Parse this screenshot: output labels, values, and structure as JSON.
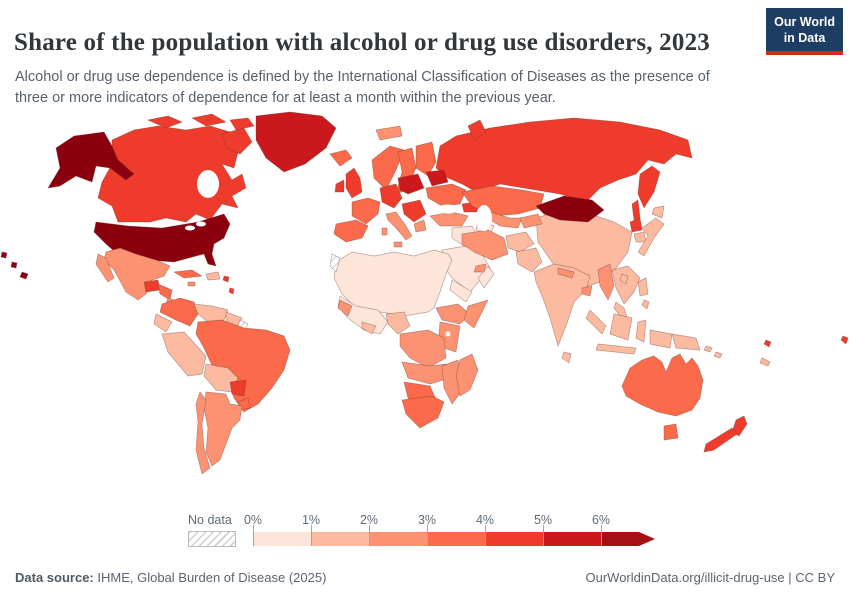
{
  "header": {
    "title": "Share of the population with alcohol or drug use disorders, 2023",
    "subtitle_line1": "Alcohol or drug use dependence is defined by the International Classification of Diseases as the presence of",
    "subtitle_line2": "three or more indicators of dependence for at least a month within the previous year.",
    "logo": {
      "line1": "Our World",
      "line2": "in Data",
      "bg_color": "#1d3d63",
      "accent_color": "#d42b21"
    }
  },
  "legend": {
    "no_data_label": "No data",
    "ticks": [
      "0%",
      "1%",
      "2%",
      "3%",
      "4%",
      "5%",
      "6%"
    ]
  },
  "footer": {
    "source_label": "Data source:",
    "source_text": " IHME, Global Burden of Disease (2025)",
    "right_text": "OurWorldinData.org/illicit-drug-use | CC BY"
  },
  "chart_data": {
    "type": "choropleth-map",
    "title": "Share of the population with alcohol or drug use disorders, 2023",
    "unit": "% of population",
    "year": "2023",
    "legend_position": "bottom",
    "bins": [
      {
        "range": "0-1%",
        "color": "#fee5d9"
      },
      {
        "range": "1-2%",
        "color": "#fcbba1"
      },
      {
        "range": "2-3%",
        "color": "#fc9272"
      },
      {
        "range": "3-4%",
        "color": "#fb6a4a"
      },
      {
        "range": "4-5%",
        "color": "#ef3b2c"
      },
      {
        "range": "5-6%",
        "color": "#cb181d"
      },
      {
        "range": "6%+",
        "color": "#a50f15"
      }
    ],
    "no_data_color": "hatch",
    "regions": [
      {
        "id": "russia",
        "name": "Russia",
        "bin": "4-5%",
        "color": "#ef3b2c"
      },
      {
        "id": "svalbard",
        "name": "Svalbard (Norway)",
        "bin": "2-3%",
        "color": "#fc9272"
      },
      {
        "id": "canada",
        "name": "Canada",
        "bin": "4-5%",
        "color": "#ef3b2c"
      },
      {
        "id": "greenland",
        "name": "Greenland",
        "bin": "5-6%",
        "color": "#cb181d"
      },
      {
        "id": "usa",
        "name": "United States",
        "bin": "6%+",
        "color": "#8b000f"
      },
      {
        "id": "mexico",
        "name": "Mexico",
        "bin": "2-3%",
        "color": "#fc9272"
      },
      {
        "id": "guatemala",
        "name": "Guatemala",
        "bin": "4-5%",
        "color": "#ef3b2c"
      },
      {
        "id": "honduras-nicaragua",
        "name": "Honduras & Nicaragua",
        "bin": "3-4%",
        "color": "#fb6a4a"
      },
      {
        "id": "costa-rica-panama",
        "name": "Costa Rica & Panama",
        "bin": "2-3%",
        "color": "#fc9272"
      },
      {
        "id": "cuba",
        "name": "Cuba",
        "bin": "3-4%",
        "color": "#fb6a4a"
      },
      {
        "id": "jamaica",
        "name": "Jamaica",
        "bin": "2-3%",
        "color": "#fc9272"
      },
      {
        "id": "hispaniola",
        "name": "Haiti & Dominican Republic",
        "bin": "1-2%",
        "color": "#fcbba1"
      },
      {
        "id": "lesser-antilles",
        "name": "Lesser Antilles",
        "bin": "4-5%",
        "color": "#ef3b2c"
      },
      {
        "id": "colombia",
        "name": "Colombia",
        "bin": "3-4%",
        "color": "#fb6a4a"
      },
      {
        "id": "venezuela",
        "name": "Venezuela",
        "bin": "1-2%",
        "color": "#fcbba1"
      },
      {
        "id": "guyanas",
        "name": "Guyana & Suriname",
        "bin": "1-2%",
        "color": "#fcbba1"
      },
      {
        "id": "french-guiana",
        "name": "French Guiana",
        "bin": "No data",
        "color": "hatch"
      },
      {
        "id": "ecuador",
        "name": "Ecuador",
        "bin": "1-2%",
        "color": "#fcbba1"
      },
      {
        "id": "brazil",
        "name": "Brazil",
        "bin": "3-4%",
        "color": "#fb6a4a"
      },
      {
        "id": "peru",
        "name": "Peru",
        "bin": "1-2%",
        "color": "#fcbba1"
      },
      {
        "id": "bolivia",
        "name": "Bolivia",
        "bin": "1-2%",
        "color": "#fcbba1"
      },
      {
        "id": "paraguay",
        "name": "Paraguay",
        "bin": "4-5%",
        "color": "#ef3b2c"
      },
      {
        "id": "uruguay",
        "name": "Uruguay",
        "bin": "3-4%",
        "color": "#fb6a4a"
      },
      {
        "id": "argentina",
        "name": "Argentina",
        "bin": "2-3%",
        "color": "#fc9272"
      },
      {
        "id": "chile",
        "name": "Chile",
        "bin": "2-3%",
        "color": "#fc9272"
      },
      {
        "id": "iceland",
        "name": "Iceland",
        "bin": "3-4%",
        "color": "#fb6a4a"
      },
      {
        "id": "uk",
        "name": "United Kingdom",
        "bin": "4-5%",
        "color": "#ef3b2c"
      },
      {
        "id": "ireland",
        "name": "Ireland",
        "bin": "4-5%",
        "color": "#ef3b2c"
      },
      {
        "id": "scandinavia",
        "name": "Norway, Sweden & Finland",
        "bin": "3-4%",
        "color": "#fb6a4a"
      },
      {
        "id": "denmark",
        "name": "Denmark",
        "bin": "4-5%",
        "color": "#ef3b2c"
      },
      {
        "id": "germany-central-europe",
        "name": "Germany & Central Europe",
        "bin": "4-5%",
        "color": "#ef3b2c"
      },
      {
        "id": "france",
        "name": "France",
        "bin": "3-4%",
        "color": "#fb6a4a"
      },
      {
        "id": "spain-portugal",
        "name": "Spain & Portugal",
        "bin": "3-4%",
        "color": "#fb6a4a"
      },
      {
        "id": "italy",
        "name": "Italy",
        "bin": "2-3%",
        "color": "#fc9272"
      },
      {
        "id": "poland-baltics",
        "name": "Poland & Baltic states",
        "bin": "5-6%",
        "color": "#cb181d"
      },
      {
        "id": "belarus",
        "name": "Belarus",
        "bin": "5-6%",
        "color": "#cb181d"
      },
      {
        "id": "ukraine",
        "name": "Ukraine",
        "bin": "3-4%",
        "color": "#fb6a4a"
      },
      {
        "id": "balkans",
        "name": "Balkans & Romania",
        "bin": "4-5%",
        "color": "#ef3b2c"
      },
      {
        "id": "greece",
        "name": "Greece",
        "bin": "2-3%",
        "color": "#fc9272"
      },
      {
        "id": "turkey",
        "name": "Turkey",
        "bin": "2-3%",
        "color": "#fc9272"
      },
      {
        "id": "caucasus",
        "name": "Caucasus",
        "bin": "4-5%",
        "color": "#ef3b2c"
      },
      {
        "id": "kazakhstan",
        "name": "Kazakhstan",
        "bin": "3-4%",
        "color": "#fb6a4a"
      },
      {
        "id": "china",
        "name": "China",
        "bin": "1-2%",
        "color": "#fcbba1"
      },
      {
        "id": "mongolia",
        "name": "Mongolia",
        "bin": "6%+",
        "color": "#8b000f"
      },
      {
        "id": "uzbekistan",
        "name": "Uzbekistan",
        "bin": "2-3%",
        "color": "#fc9272"
      },
      {
        "id": "turkmenistan",
        "name": "Turkmenistan",
        "bin": "0-1%",
        "color": "#fee5d9"
      },
      {
        "id": "kyrgyzstan-tajikistan",
        "name": "Kyrgyzstan & Tajikistan",
        "bin": "2-3%",
        "color": "#fc9272"
      },
      {
        "id": "syria-iraq",
        "name": "Syria & Iraq",
        "bin": "0-1%",
        "color": "#fee5d9"
      },
      {
        "id": "saudi-arabia",
        "name": "Saudi Arabia",
        "bin": "0-1%",
        "color": "#fee5d9"
      },
      {
        "id": "yemen",
        "name": "Yemen",
        "bin": "0-1%",
        "color": "#fee5d9"
      },
      {
        "id": "oman",
        "name": "Oman",
        "bin": "0-1%",
        "color": "#fee5d9"
      },
      {
        "id": "uae",
        "name": "United Arab Emirates",
        "bin": "2-3%",
        "color": "#fc9272"
      },
      {
        "id": "iran",
        "name": "Iran",
        "bin": "2-3%",
        "color": "#fc9272"
      },
      {
        "id": "afghanistan",
        "name": "Afghanistan",
        "bin": "1-2%",
        "color": "#fcbba1"
      },
      {
        "id": "pakistan",
        "name": "Pakistan",
        "bin": "1-2%",
        "color": "#fcbba1"
      },
      {
        "id": "india",
        "name": "India",
        "bin": "1-2%",
        "color": "#fcbba1"
      },
      {
        "id": "nepal",
        "name": "Nepal",
        "bin": "2-3%",
        "color": "#fc9272"
      },
      {
        "id": "bangladesh",
        "name": "Bangladesh",
        "bin": "2-3%",
        "color": "#fc9272"
      },
      {
        "id": "sri-lanka",
        "name": "Sri Lanka",
        "bin": "1-2%",
        "color": "#fcbba1"
      },
      {
        "id": "myanmar",
        "name": "Myanmar",
        "bin": "2-3%",
        "color": "#fc9272"
      },
      {
        "id": "thailand-indochina",
        "name": "Thailand & Indochina",
        "bin": "1-2%",
        "color": "#fcbba1"
      },
      {
        "id": "malaysia",
        "name": "Malaysia",
        "bin": "1-2%",
        "color": "#fcbba1"
      },
      {
        "id": "indonesia",
        "name": "Indonesia",
        "bin": "1-2%",
        "color": "#fcbba1"
      },
      {
        "id": "papua-new-guinea",
        "name": "Papua New Guinea",
        "bin": "1-2%",
        "color": "#fcbba1"
      },
      {
        "id": "philippines",
        "name": "Philippines",
        "bin": "1-2%",
        "color": "#fcbba1"
      },
      {
        "id": "taiwan",
        "name": "Taiwan",
        "bin": "1-2%",
        "color": "#fcbba1"
      },
      {
        "id": "north-korea",
        "name": "North Korea",
        "bin": "4-5%",
        "color": "#ef3b2c"
      },
      {
        "id": "south-korea",
        "name": "South Korea",
        "bin": "1-2%",
        "color": "#fcbba1"
      },
      {
        "id": "japan",
        "name": "Japan",
        "bin": "1-2%",
        "color": "#fcbba1"
      },
      {
        "id": "north-africa",
        "name": "North Africa & Sahel",
        "bin": "0-1%",
        "color": "#fee5d9"
      },
      {
        "id": "western-sahara",
        "name": "Western Sahara",
        "bin": "No data",
        "color": "hatch"
      },
      {
        "id": "west-africa",
        "name": "West Africa",
        "bin": "0-1%",
        "color": "#fee5d9"
      },
      {
        "id": "senegal-guinea",
        "name": "Senegal & Guinea",
        "bin": "2-3%",
        "color": "#fc9272"
      },
      {
        "id": "ghana-cote-divoire",
        "name": "Ghana & Cote d'Ivoire",
        "bin": "1-2%",
        "color": "#fcbba1"
      },
      {
        "id": "nigeria-cameroon",
        "name": "Nigeria & Cameroon",
        "bin": "1-2%",
        "color": "#fcbba1"
      },
      {
        "id": "ethiopia",
        "name": "Ethiopia",
        "bin": "2-3%",
        "color": "#fc9272"
      },
      {
        "id": "somalia",
        "name": "Somalia",
        "bin": "2-3%",
        "color": "#fc9272"
      },
      {
        "id": "kenya-tanzania",
        "name": "Kenya & Tanzania",
        "bin": "2-3%",
        "color": "#fc9272"
      },
      {
        "id": "dr-congo",
        "name": "DR Congo & Central Africa",
        "bin": "2-3%",
        "color": "#fc9272"
      },
      {
        "id": "angola-zambia",
        "name": "Angola & Zambia",
        "bin": "2-3%",
        "color": "#fc9272"
      },
      {
        "id": "mozambique-zimbabwe",
        "name": "Mozambique & Zimbabwe",
        "bin": "2-3%",
        "color": "#fc9272"
      },
      {
        "id": "namibia-botswana",
        "name": "Namibia & Botswana",
        "bin": "3-4%",
        "color": "#fb6a4a"
      },
      {
        "id": "south-africa",
        "name": "South Africa",
        "bin": "3-4%",
        "color": "#fb6a4a"
      },
      {
        "id": "madagascar",
        "name": "Madagascar",
        "bin": "2-3%",
        "color": "#fc9272"
      },
      {
        "id": "australia",
        "name": "Australia",
        "bin": "3-4%",
        "color": "#fb6a4a"
      },
      {
        "id": "new-zealand",
        "name": "New Zealand",
        "bin": "4-5%",
        "color": "#ef3b2c"
      },
      {
        "id": "fiji",
        "name": "Fiji",
        "bin": "4-5%",
        "color": "#ef3b2c"
      },
      {
        "id": "new-caledonia",
        "name": "New Caledonia",
        "bin": "1-2%",
        "color": "#fcbba1"
      }
    ]
  }
}
